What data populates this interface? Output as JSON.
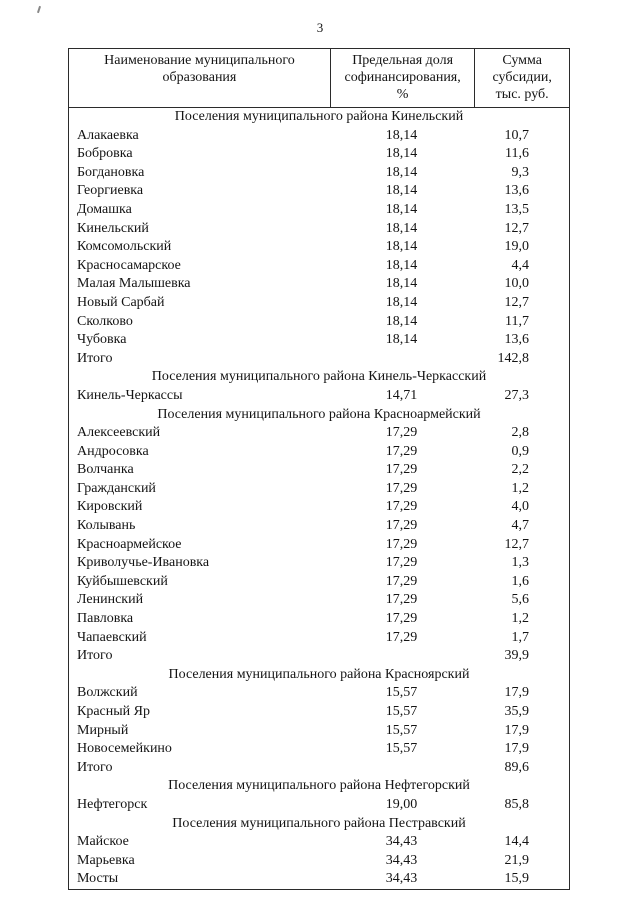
{
  "page": {
    "number": "3"
  },
  "table": {
    "headers": [
      "Наименование муниципального образования",
      "Предельная доля софинансирования, %",
      "Сумма субсидии, тыс. руб."
    ],
    "sections": [
      {
        "title": "Поселения муниципального района Кинельский",
        "rows": [
          [
            "Алакаевка",
            "18,14",
            "10,7"
          ],
          [
            "Бобровка",
            "18,14",
            "11,6"
          ],
          [
            "Богдановка",
            "18,14",
            "9,3"
          ],
          [
            "Георгиевка",
            "18,14",
            "13,6"
          ],
          [
            "Домашка",
            "18,14",
            "13,5"
          ],
          [
            "Кинельский",
            "18,14",
            "12,7"
          ],
          [
            "Комсомольский",
            "18,14",
            "19,0"
          ],
          [
            "Красносамарское",
            "18,14",
            "4,4"
          ],
          [
            "Малая Малышевка",
            "18,14",
            "10,0"
          ],
          [
            "Новый Сарбай",
            "18,14",
            "12,7"
          ],
          [
            "Сколково",
            "18,14",
            "11,7"
          ],
          [
            "Чубовка",
            "18,14",
            "13,6"
          ],
          [
            "Итого",
            "",
            "142,8"
          ]
        ]
      },
      {
        "title": "Поселения муниципального района Кинель-Черкасский",
        "rows": [
          [
            "Кинель-Черкассы",
            "14,71",
            "27,3"
          ]
        ]
      },
      {
        "title": "Поселения муниципального района Красноармейский",
        "rows": [
          [
            "Алексеевский",
            "17,29",
            "2,8"
          ],
          [
            "Андросовка",
            "17,29",
            "0,9"
          ],
          [
            "Волчанка",
            "17,29",
            "2,2"
          ],
          [
            "Гражданский",
            "17,29",
            "1,2"
          ],
          [
            "Кировский",
            "17,29",
            "4,0"
          ],
          [
            "Колывань",
            "17,29",
            "4,7"
          ],
          [
            "Красноармейское",
            "17,29",
            "12,7"
          ],
          [
            "Криволучье-Ивановка",
            "17,29",
            "1,3"
          ],
          [
            "Куйбышевский",
            "17,29",
            "1,6"
          ],
          [
            "Ленинский",
            "17,29",
            "5,6"
          ],
          [
            "Павловка",
            "17,29",
            "1,2"
          ],
          [
            "Чапаевский",
            "17,29",
            "1,7"
          ],
          [
            "Итого",
            "",
            "39,9"
          ]
        ]
      },
      {
        "title": "Поселения муниципального района Красноярский",
        "rows": [
          [
            "Волжский",
            "15,57",
            "17,9"
          ],
          [
            "Красный Яр",
            "15,57",
            "35,9"
          ],
          [
            "Мирный",
            "15,57",
            "17,9"
          ],
          [
            "Новосемейкино",
            "15,57",
            "17,9"
          ],
          [
            "Итого",
            "",
            "89,6"
          ]
        ]
      },
      {
        "title": "Поселения муниципального района Нефтегорский",
        "rows": [
          [
            "Нефтегорск",
            "19,00",
            "85,8"
          ]
        ]
      },
      {
        "title": "Поселения муниципального района Пестравский",
        "rows": [
          [
            "Майское",
            "34,43",
            "14,4"
          ],
          [
            "Марьевка",
            "34,43",
            "21,9"
          ],
          [
            "Мосты",
            "34,43",
            "15,9"
          ]
        ]
      }
    ]
  }
}
